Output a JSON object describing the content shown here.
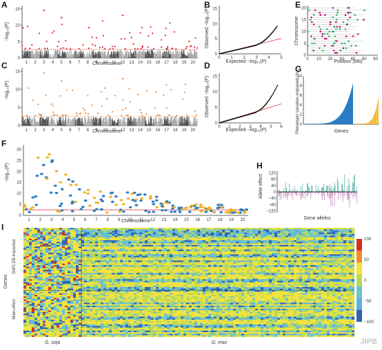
{
  "panels": {
    "A": {
      "letter": "A",
      "ylabel": "−log₁₀(P)",
      "xlabel": "Chromosome",
      "yticks": [
        "0",
        "5",
        "10",
        "15"
      ],
      "chromosomes": [
        "1",
        "2",
        "3",
        "4",
        "5",
        "6",
        "7",
        "8",
        "9",
        "10",
        "11",
        "12",
        "13",
        "14",
        "15",
        "16",
        "17",
        "18",
        "19",
        "20"
      ]
    },
    "B": {
      "letter": "B",
      "ylabel": "Observed −log₁₀(P)",
      "xlabel": "Expected −log₁₀(P)",
      "yticks": [
        "0",
        "5",
        "10",
        "15"
      ],
      "xticks": [
        "0",
        "1",
        "2",
        "3",
        "4",
        "5"
      ]
    },
    "C": {
      "letter": "C",
      "ylabel": "−log₁₀(P)",
      "xlabel": "Chromosome",
      "yticks": [
        "0",
        "5",
        "10",
        "15"
      ],
      "chromosomes": [
        "1",
        "2",
        "3",
        "4",
        "5",
        "6",
        "7",
        "8",
        "9",
        "10",
        "11",
        "12",
        "13",
        "14",
        "15",
        "16",
        "17",
        "18",
        "19",
        "20"
      ]
    },
    "D": {
      "letter": "D",
      "ylabel": "Observed −log₁₀(P)",
      "xlabel": "Expected −log₁₀(P)",
      "yticks": [
        "0",
        "5",
        "10",
        "15"
      ],
      "xticks": [
        "0",
        "1",
        "2",
        "3",
        "4",
        "5",
        "6"
      ]
    },
    "E": {
      "letter": "E",
      "ylabel": "Chromosome",
      "xlabel": "Position (Mb)",
      "yticks": [
        "0",
        "5",
        "10",
        "15",
        "20"
      ],
      "xticks": [
        "0",
        "10",
        "20",
        "30",
        "40",
        "50",
        "60"
      ]
    },
    "F": {
      "letter": "F",
      "ylabel": "−log₁₀(P)",
      "xlabel": "Chromosome",
      "yticks": [
        "0",
        "5",
        "10",
        "15",
        "20",
        "25",
        "30"
      ],
      "chromosomes": [
        "1",
        "2",
        "3",
        "4",
        "5",
        "6",
        "7",
        "8",
        "9",
        "10",
        "11",
        "12",
        "13",
        "14",
        "15",
        "16",
        "17",
        "18",
        "19",
        "20"
      ]
    },
    "G": {
      "letter": "G",
      "ylabel": "Phenotypic variation explained (%)",
      "xlabel": "Genes",
      "yticks": [
        "0",
        "2",
        "4",
        "6",
        "8",
        "10"
      ]
    },
    "H": {
      "letter": "H",
      "ylabel": "Allele effect",
      "xlabel": "Gene alleles",
      "yticks": [
        "120",
        "80",
        "40",
        "0",
        "−40",
        "−80",
        "−120"
      ]
    },
    "I": {
      "letter": "I",
      "ylabel": "Genes",
      "group_top": "SNPLDB-impacted",
      "group_bottom": "Main-effect",
      "xlabel_left": "G. soja",
      "xlabel_right": "G. max",
      "colorbar_ticks": [
        "100",
        "50",
        "0",
        "−50",
        "−100"
      ]
    }
  },
  "watermark": "JIPB",
  "colors": {
    "manhattan_dark": "#555555",
    "manhattan_light": "#a8a8a8",
    "hit_red": "#e0262b",
    "hit_orange": "#f08a3c",
    "qq_black": "#111111",
    "qq_line": "#e04040",
    "blue": "#2a7bc4",
    "gold": "#f0b323",
    "magenta": "#c2147a",
    "green": "#33b36b",
    "teal": "#5ab5a8",
    "pink": "#c98cbf"
  }
}
